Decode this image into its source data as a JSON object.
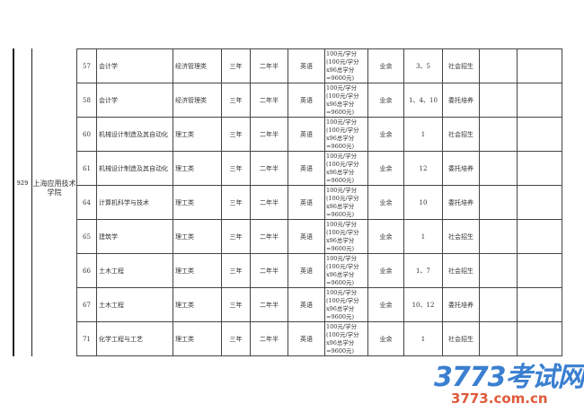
{
  "institution": {
    "code": "929",
    "name": "上海应用技术学院"
  },
  "rows": [
    {
      "no": "57",
      "major": "会计学",
      "category": "经济管理类",
      "full_time": "三年",
      "part_time": "二年半",
      "language": "英语",
      "fee": "100元/学分(100元/学分x96总学分=9600元)",
      "mode": "业余",
      "region": "3、5",
      "type": "社会招生"
    },
    {
      "no": "58",
      "major": "会计学",
      "category": "经济管理类",
      "full_time": "三年",
      "part_time": "二年半",
      "language": "英语",
      "fee": "100元/学分(100元/学分x96总学分=9600元)",
      "mode": "业余",
      "region": "1、4、10",
      "type": "委托培养"
    },
    {
      "no": "60",
      "major": "机械设计制造及其自动化",
      "category": "理工类",
      "full_time": "三年",
      "part_time": "二年半",
      "language": "英语",
      "fee": "100元/学分(100元/学分x96总学分=9600元)",
      "mode": "业余",
      "region": "1",
      "type": "社会招生"
    },
    {
      "no": "61",
      "major": "机械设计制造及其自动化",
      "category": "理工类",
      "full_time": "三年",
      "part_time": "二年半",
      "language": "英语",
      "fee": "100元/学分(100元/学分x96总学分=9600元)",
      "mode": "业余",
      "region": "12",
      "type": "委托培养"
    },
    {
      "no": "64",
      "major": "计算机科学与技术",
      "category": "理工类",
      "full_time": "三年",
      "part_time": "二年半",
      "language": "英语",
      "fee": "100元/学分(100元/学分x96总学分=9600元)",
      "mode": "业余",
      "region": "10",
      "type": "委托培养"
    },
    {
      "no": "65",
      "major": "建筑学",
      "category": "理工类",
      "full_time": "三年",
      "part_time": "二年半",
      "language": "英语",
      "fee": "100元/学分(100元/学分x96总学分=9600元)",
      "mode": "业余",
      "region": "1",
      "type": "社会招生"
    },
    {
      "no": "66",
      "major": "土木工程",
      "category": "理工类",
      "full_time": "三年",
      "part_time": "二年半",
      "language": "英语",
      "fee": "100元/学分(100元/学分x96总学分=9600元)",
      "mode": "业余",
      "region": "1、7",
      "type": "社会招生"
    },
    {
      "no": "67",
      "major": "土木工程",
      "category": "理工类",
      "full_time": "三年",
      "part_time": "二年半",
      "language": "英语",
      "fee": "100元/学分(100元/学分x96总学分=9600元)",
      "mode": "业余",
      "region": "10、12",
      "type": "委托培养"
    },
    {
      "no": "71",
      "major": "化学工程与工艺",
      "category": "理工类",
      "full_time": "三年",
      "part_time": "二年半",
      "language": "英语",
      "fee": "100元/学分(100元/学分x96总学分=9600元)",
      "mode": "业余",
      "region": "1",
      "type": "社会招生"
    }
  ],
  "watermark": {
    "logo": "3773考试网",
    "url": "3773.com.cn"
  }
}
